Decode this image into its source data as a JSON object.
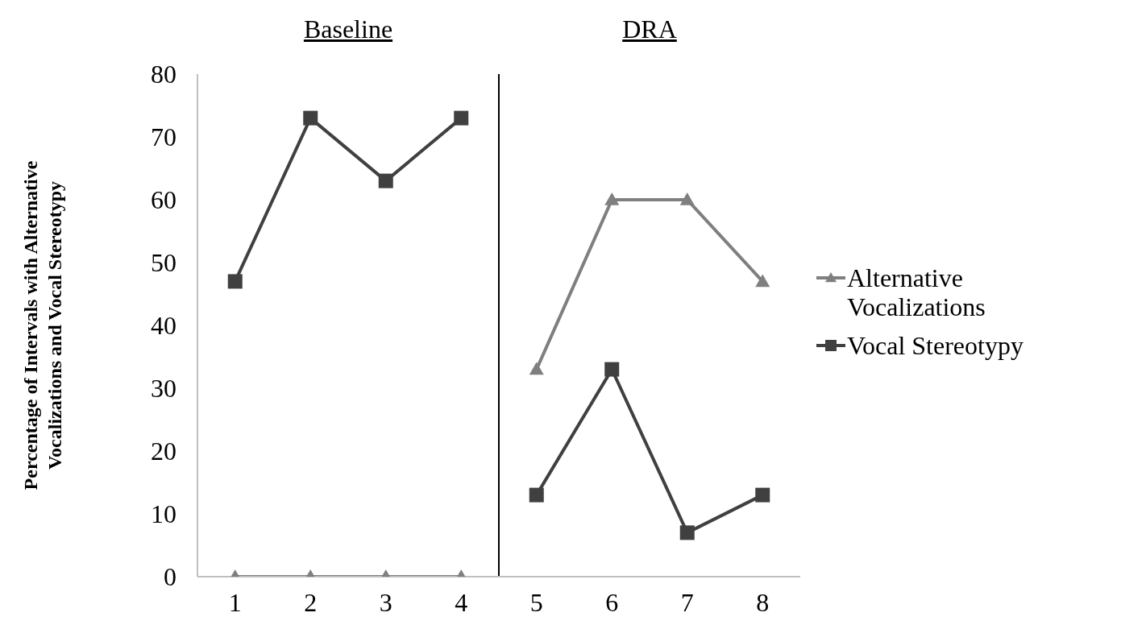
{
  "chart_data": {
    "type": "line",
    "ylabel": "Percentage of Intervals with Alternative Vocalizations and Vocal Stereotypy",
    "x": [
      1,
      2,
      3,
      4,
      5,
      6,
      7,
      8
    ],
    "xlim": [
      0.5,
      8.5
    ],
    "xticks": [
      1,
      2,
      3,
      4,
      5,
      6,
      7,
      8
    ],
    "ylim": [
      0,
      80
    ],
    "yticks": [
      0,
      10,
      20,
      30,
      40,
      50,
      60,
      70,
      80
    ],
    "series": [
      {
        "name": "Alternative Vocalizations",
        "color": "#7f7f7f",
        "marker": "triangle",
        "values": [
          0,
          0,
          0,
          0,
          33,
          60,
          60,
          47
        ]
      },
      {
        "name": "Vocal Stereotypy",
        "color": "#404040",
        "marker": "square",
        "values": [
          47,
          73,
          63,
          73,
          13,
          33,
          7,
          13
        ]
      }
    ],
    "ref_lines": [
      {
        "axis": "x",
        "value": 4.5,
        "color": "#000000"
      }
    ],
    "annotations": [
      "Baseline",
      "DRA"
    ],
    "grid": false,
    "legend": "right"
  }
}
